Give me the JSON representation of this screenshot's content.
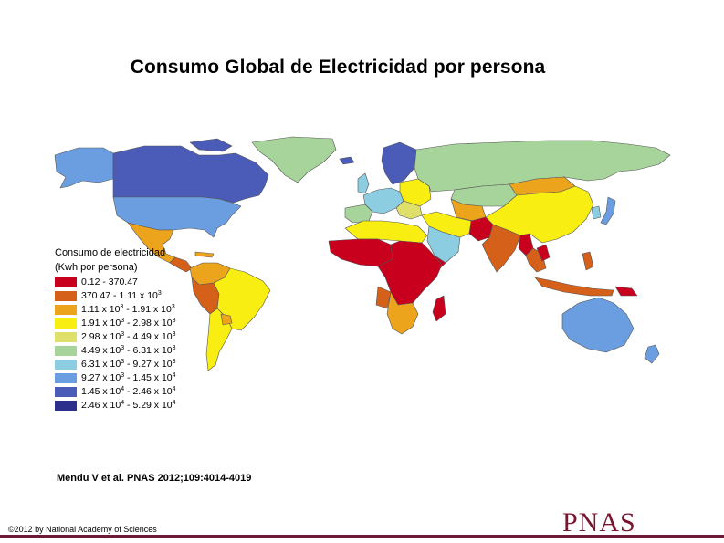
{
  "title": "Consumo Global de Electricidad por persona",
  "legend": {
    "title_line1": "Consumo de electricidad",
    "title_line2": "(Kwh por persona)",
    "items": [
      {
        "color": "#c8001e",
        "html": "0.12 - 370.47"
      },
      {
        "color": "#d5601a",
        "html": "370.47 - 1.11 x 10<sup>3</sup>"
      },
      {
        "color": "#eda41d",
        "html": "1.11 x 10<sup>3</sup> - 1.91 x 10<sup>3</sup>"
      },
      {
        "color": "#f9ee11",
        "html": "1.91 x 10<sup>3</sup> - 2.98 x 10<sup>3</sup>"
      },
      {
        "color": "#dfe06a",
        "html": "2.98 x 10<sup>3</sup> - 4.49 x 10<sup>3</sup>"
      },
      {
        "color": "#a7d49a",
        "html": "4.49 x 10<sup>3</sup> - 6.31 x 10<sup>3</sup>"
      },
      {
        "color": "#8ccde2",
        "html": "6.31 x 10<sup>3</sup> - 9.27 x 10<sup>3</sup>"
      },
      {
        "color": "#6b9ee0",
        "html": "9.27 x 10<sup>3</sup> - 1.45 x 10<sup>4</sup>"
      },
      {
        "color": "#4a5bb8",
        "html": "1.45 x 10<sup>4</sup> - 2.46 x 10<sup>4</sup>"
      },
      {
        "color": "#2c2f8c",
        "html": "2.46 x 10<sup>4</sup> - 5.29 x 10<sup>4</sup>"
      }
    ]
  },
  "citation": "Mendu V et al. PNAS 2012;109:4014-4019",
  "copyright": "©2012 by National Academy of Sciences",
  "logo_text": "PNAS",
  "colors": {
    "c1": "#c8001e",
    "c2": "#d5601a",
    "c3": "#eda41d",
    "c4": "#f9ee11",
    "c5": "#dfe06a",
    "c6": "#a7d49a",
    "c7": "#8ccde2",
    "c8": "#6b9ee0",
    "c9": "#4a5bb8",
    "c10": "#2c2f8c",
    "brand": "#7a1530"
  }
}
